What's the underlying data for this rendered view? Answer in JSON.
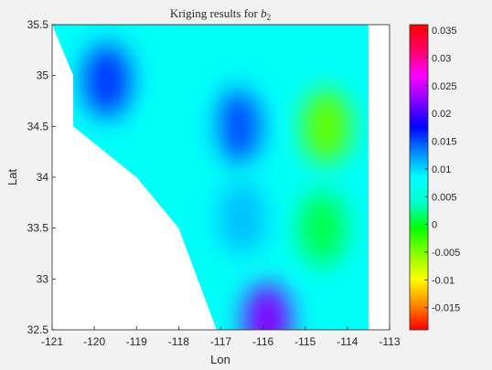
{
  "chart_data": {
    "type": "heatmap",
    "title": "Kriging results for",
    "title_symbol": "b",
    "title_subscript": "2",
    "xlabel": "Lon",
    "ylabel": "Lat",
    "xlim": [
      -121,
      -113
    ],
    "ylim": [
      32.5,
      35.5
    ],
    "x_ticks": [
      "-121",
      "-120",
      "-119",
      "-118",
      "-117",
      "-116",
      "-115",
      "-114",
      "-113"
    ],
    "y_ticks": [
      "32.5",
      "33",
      "33.5",
      "34",
      "34.5",
      "35",
      "35.5"
    ],
    "colorbar": {
      "range": [
        -0.019,
        0.036
      ],
      "ticks": [
        "0.035",
        "0.03",
        "0.025",
        "0.02",
        "0.015",
        "0.01",
        "0.005",
        "0",
        "-0.005",
        "-0.01",
        "-0.015"
      ],
      "colors": [
        "#ff0000",
        "#ff8800",
        "#ffff00",
        "#88ff00",
        "#00ff00",
        "#00ffcc",
        "#00ffff",
        "#0088ff",
        "#0000ff",
        "#8800ff",
        "#ff00ff",
        "#ff0066",
        "#ff0000"
      ]
    },
    "region_boundary": [
      [
        -121,
        35.5
      ],
      [
        -120.5,
        35.0
      ],
      [
        -120.5,
        34.5
      ],
      [
        -119.0,
        34.0
      ],
      [
        -118.0,
        33.5
      ],
      [
        -117.1,
        32.5
      ],
      [
        -113.5,
        32.5
      ],
      [
        -113.5,
        35.5
      ]
    ],
    "features": [
      {
        "lon": -119.7,
        "lat": 34.95,
        "value": 0.016
      },
      {
        "lon": -116.6,
        "lat": 34.5,
        "value": 0.015
      },
      {
        "lon": -116.5,
        "lat": 33.6,
        "value": 0.011
      },
      {
        "lon": -115.9,
        "lat": 32.6,
        "value": 0.022
      },
      {
        "lon": -114.5,
        "lat": 34.5,
        "value": -0.004
      },
      {
        "lon": -114.6,
        "lat": 33.5,
        "value": 0.001
      },
      {
        "lon": -117.8,
        "lat": 34.4,
        "value": 0.008
      }
    ],
    "background_value": 0.008
  }
}
